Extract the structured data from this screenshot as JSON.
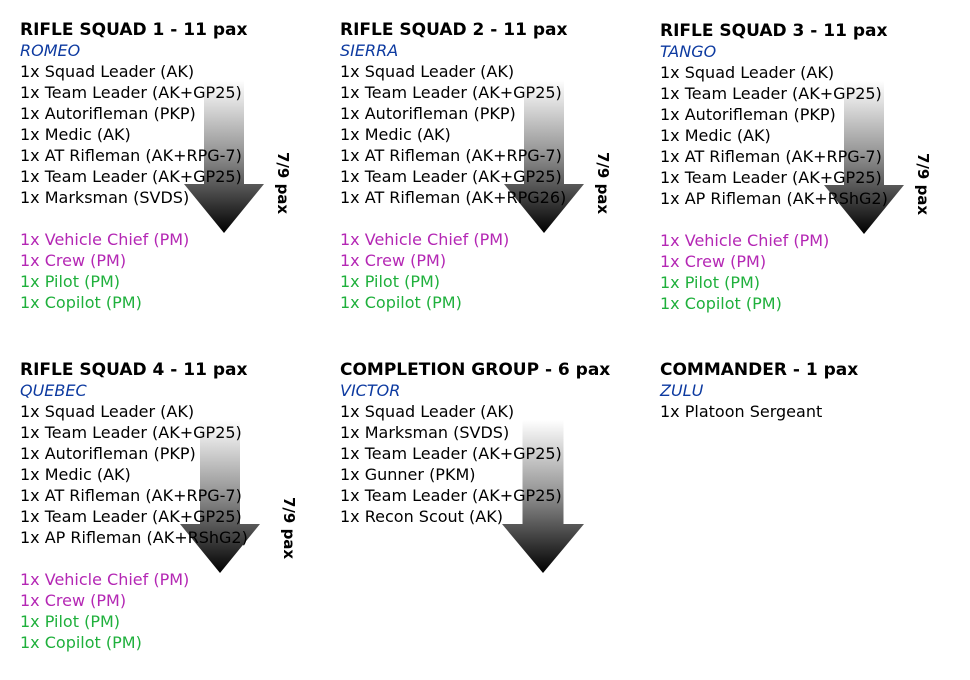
{
  "colors": {
    "callsign": "#0d3aa0",
    "crew": "#b427b4",
    "pilot": "#1fb03c",
    "default": "#000000"
  },
  "squads": [
    {
      "title": "RIFLE SQUAD 1 - 11 pax",
      "callsign": "ROMEO",
      "members": [
        "1x Squad Leader (AK)",
        "1x Team Leader (AK+GP25)",
        "1x Autorifleman (PKP)",
        "1x Medic (AK)",
        "1x AT Rifleman (AK+RPG-7)",
        "1x Team Leader (AK+GP25)",
        "1x Marksman (SVDS)"
      ],
      "vehicle": [
        {
          "text": "1x Vehicle Chief (PM)",
          "role": "crew"
        },
        {
          "text": "1x Crew (PM)",
          "role": "crew"
        },
        {
          "text": "1x Pilot (PM)",
          "role": "pilot"
        },
        {
          "text": "1x Copilot (PM)",
          "role": "pilot"
        }
      ],
      "pax_label": "7/9 pax"
    },
    {
      "title": "RIFLE SQUAD 2 - 11 pax",
      "callsign": "SIERRA",
      "members": [
        "1x Squad Leader (AK)",
        "1x Team Leader (AK+GP25)",
        "1x Autorifleman (PKP)",
        "1x Medic (AK)",
        "1x AT Rifleman (AK+RPG-7)",
        "1x Team Leader (AK+GP25)",
        "1x AT Rifleman (AK+RPG26)"
      ],
      "vehicle": [
        {
          "text": "1x Vehicle Chief (PM)",
          "role": "crew"
        },
        {
          "text": "1x Crew (PM)",
          "role": "crew"
        },
        {
          "text": "1x Pilot (PM)",
          "role": "pilot"
        },
        {
          "text": "1x Copilot (PM)",
          "role": "pilot"
        }
      ],
      "pax_label": "7/9 pax"
    },
    {
      "title": "RIFLE SQUAD 3 - 11 pax",
      "callsign": "TANGO",
      "members": [
        "1x Squad Leader (AK)",
        "1x Team Leader (AK+GP25)",
        "1x Autorifleman (PKP)",
        "1x Medic (AK)",
        "1x AT Rifleman (AK+RPG-7)",
        "1x Team Leader (AK+GP25)",
        "1x AP Rifleman (AK+RShG2)"
      ],
      "vehicle": [
        {
          "text": "1x Vehicle Chief (PM)",
          "role": "crew"
        },
        {
          "text": "1x Crew (PM)",
          "role": "crew"
        },
        {
          "text": "1x Pilot (PM)",
          "role": "pilot"
        },
        {
          "text": "1x Copilot (PM)",
          "role": "pilot"
        }
      ],
      "pax_label": "7/9 pax"
    },
    {
      "title": "RIFLE SQUAD 4 - 11 pax",
      "callsign": "QUEBEC",
      "members": [
        "1x Squad Leader (AK)",
        "1x Team Leader (AK+GP25)",
        "1x Autorifleman (PKP)",
        "1x Medic (AK)",
        "1x AT Rifleman (AK+RPG-7)",
        "1x Team Leader (AK+GP25)",
        "1x AP Rifleman (AK+RShG2)"
      ],
      "vehicle": [
        {
          "text": "1x Vehicle Chief (PM)",
          "role": "crew"
        },
        {
          "text": "1x Crew (PM)",
          "role": "crew"
        },
        {
          "text": "1x Pilot (PM)",
          "role": "pilot"
        },
        {
          "text": "1x Copilot (PM)",
          "role": "pilot"
        }
      ],
      "pax_label": "7/9 pax"
    },
    {
      "title": "COMPLETION GROUP - 6 pax",
      "callsign": "VICTOR",
      "members": [
        "1x Squad Leader (AK)",
        "1x Marksman (SVDS)",
        "1x Team Leader (AK+GP25)",
        "1x Gunner (PKM)",
        "1x Team Leader (AK+GP25)",
        "1x Recon Scout (AK)"
      ],
      "vehicle": [],
      "pax_label": ""
    },
    {
      "title": "COMMANDER - 1 pax",
      "callsign": "ZULU",
      "members": [
        "1x Platoon Sergeant"
      ],
      "vehicle": [],
      "pax_label": ""
    }
  ]
}
